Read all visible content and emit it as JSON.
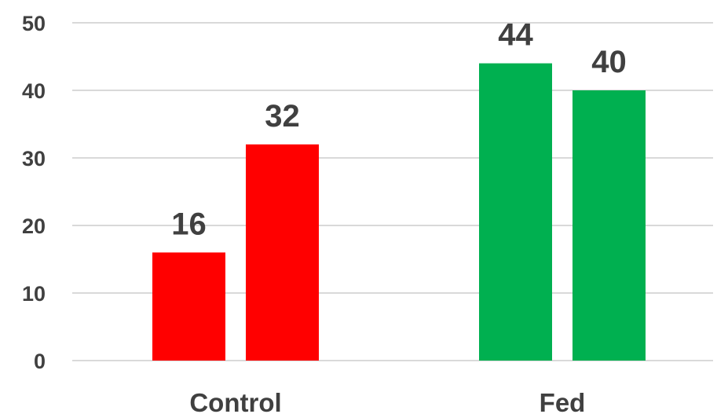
{
  "chart_data": {
    "type": "bar",
    "categories": [
      "Control",
      "Fed"
    ],
    "bars": [
      {
        "category": "Control",
        "value": 16,
        "color": "#ff0000"
      },
      {
        "category": "Control",
        "value": 32,
        "color": "#ff0000"
      },
      {
        "category": "Fed",
        "value": 44,
        "color": "#00b050"
      },
      {
        "category": "Fed",
        "value": 40,
        "color": "#00b050"
      }
    ],
    "y_ticks": [
      0,
      10,
      20,
      30,
      40,
      50
    ],
    "ylim": [
      0,
      50
    ],
    "grid": true,
    "legend": "none",
    "title": "",
    "xlabel": "",
    "ylabel": ""
  }
}
